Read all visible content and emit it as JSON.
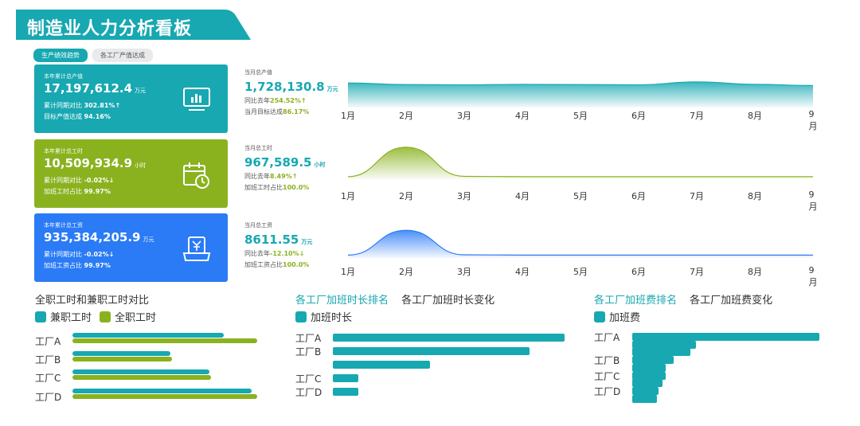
{
  "header": {
    "title": "制造业人力分析看板"
  },
  "tabs": [
    {
      "label": "生产绩效趋势",
      "active": true
    },
    {
      "label": "各工厂产值达成",
      "active": false
    }
  ],
  "colors": {
    "teal": "#17a8b1",
    "green": "#8ab21f",
    "blue": "#2a7bf5"
  },
  "cards": [
    {
      "caption": "本年累计总产值",
      "value": "17,197,612.4",
      "unit": "万元",
      "line1_label": "累计同期对比",
      "line1_value": "302.81%",
      "line1_arrow": "↑",
      "line2_label": "目标产值达成",
      "line2_value": "94.16%",
      "icon": "monitor-chart-icon"
    },
    {
      "caption": "本年累计总工时",
      "value": "10,509,934.9",
      "unit": "小时",
      "line1_label": "累计同期对比",
      "line1_value": "-0.02%",
      "line1_arrow": "↓",
      "line2_label": "加班工时占比",
      "line2_value": "99.97%",
      "icon": "calendar-clock-icon"
    },
    {
      "caption": "本年累计总工资",
      "value": "935,384,205.9",
      "unit": "万元",
      "line1_label": "累计同期对比",
      "line1_value": "-0.02%",
      "line1_arrow": "↓",
      "line2_label": "加班工资占比",
      "line2_value": "99.97%",
      "icon": "yen-register-icon"
    }
  ],
  "monthly": [
    {
      "caption": "当月总产值",
      "value": "1,728,130.8",
      "unit": "万元",
      "line1_label": "同比去年",
      "line1_value": "254.52%",
      "line1_arrow": "↑",
      "line2_label": "当月目标达成",
      "line2_value": "86.17%"
    },
    {
      "caption": "当月总工时",
      "value": "967,589.5",
      "unit": "小时",
      "line1_label": "同比去年",
      "line1_value": "8.49%",
      "line1_arrow": "↑",
      "line2_label": "加班工时占比",
      "line2_value": "100.0%"
    },
    {
      "caption": "当月总工资",
      "value": "8611.55",
      "unit": "万元",
      "line1_label": "同比去年",
      "line1_value": "-12.10%",
      "line1_arrow": "↓",
      "line2_label": "加班工资占比",
      "line2_value": "100.0%"
    }
  ],
  "months": [
    "1月",
    "2月",
    "3月",
    "4月",
    "5月",
    "6月",
    "7月",
    "8月",
    "9月"
  ],
  "chart_data": [
    {
      "type": "area",
      "name": "当月总产值趋势",
      "x": [
        "1月",
        "2月",
        "3月",
        "4月",
        "5月",
        "6月",
        "7月",
        "8月",
        "9月"
      ],
      "values": [
        100,
        93,
        92,
        94,
        93,
        92,
        105,
        94,
        89
      ],
      "ylim": [
        0,
        160
      ],
      "color": "#17a8b1"
    },
    {
      "type": "area",
      "name": "当月总工时趋势",
      "x": [
        "1月",
        "2月",
        "3月",
        "4月",
        "5月",
        "6月",
        "7月",
        "8月",
        "9月"
      ],
      "values": [
        3,
        100,
        4,
        3,
        3,
        3,
        3,
        3,
        3
      ],
      "ylim": [
        0,
        110
      ],
      "color": "#8ab21f"
    },
    {
      "type": "area",
      "name": "当月总工资趋势",
      "x": [
        "1月",
        "2月",
        "3月",
        "4月",
        "5月",
        "6月",
        "7月",
        "8月",
        "9月"
      ],
      "values": [
        5,
        100,
        6,
        5,
        5,
        5,
        5,
        5,
        5
      ],
      "ylim": [
        0,
        110
      ],
      "color": "#2a7bf5"
    },
    {
      "type": "bar",
      "title": "全职工时和兼职工时对比",
      "categories": [
        "工厂A",
        "工厂B",
        "工厂C",
        "工厂D"
      ],
      "series": [
        {
          "name": "兼职工时",
          "values": [
            82,
            53,
            74,
            97
          ]
        },
        {
          "name": "全职工时",
          "values": [
            100,
            54,
            75,
            100
          ]
        }
      ],
      "xlim": [
        0,
        100
      ]
    },
    {
      "type": "bar",
      "title": "各工厂加班时长排名",
      "subtitle": "各工厂加班时长变化",
      "categories": [
        "工厂A",
        "工厂B",
        "",
        "工厂C",
        "工厂D"
      ],
      "series": [
        {
          "name": "加班时长",
          "values": [
            100,
            85,
            42,
            11,
            11
          ]
        }
      ],
      "xlim": [
        0,
        100
      ]
    },
    {
      "type": "bar",
      "title": "各工厂加班费排名",
      "subtitle": "各工厂加班费变化",
      "categories": [
        "工厂A",
        "",
        "",
        "工厂B",
        "",
        "工厂C",
        "",
        "工厂D",
        ""
      ],
      "series": [
        {
          "name": "加班费",
          "values": [
            100,
            34,
            31,
            22,
            18,
            18,
            16,
            14,
            13
          ]
        }
      ],
      "xlim": [
        0,
        100
      ]
    }
  ]
}
